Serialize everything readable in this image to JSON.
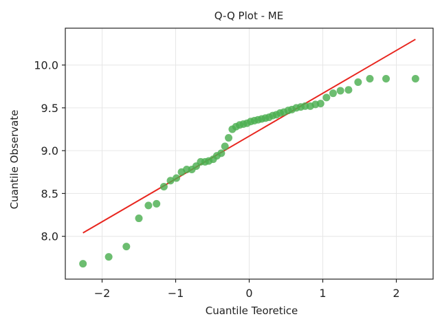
{
  "chart_data": {
    "type": "scatter",
    "title": "Q-Q Plot - ME",
    "xlabel": "Cuantile Teoretice",
    "ylabel": "Cuantile Observate",
    "xlim": [
      -2.5,
      2.5
    ],
    "ylim": [
      7.5,
      10.43
    ],
    "grid": true,
    "xticks": [
      -2,
      -1,
      0,
      1,
      2
    ],
    "xtick_labels": [
      "−2",
      "−1",
      "0",
      "1",
      "2"
    ],
    "yticks": [
      8.0,
      8.5,
      9.0,
      9.5,
      10.0
    ],
    "ytick_labels": [
      "8.0",
      "8.5",
      "9.0",
      "9.5",
      "10.0"
    ],
    "colors": {
      "points": "#4caf50",
      "line": "#e8261f"
    },
    "series": [
      {
        "kind": "points",
        "x": [
          -2.26,
          -1.91,
          -1.67,
          -1.5,
          -1.37,
          -1.26,
          -1.16,
          -1.07,
          -0.99,
          -0.92,
          -0.85,
          -0.78,
          -0.72,
          -0.66,
          -0.6,
          -0.55,
          -0.49,
          -0.44,
          -0.38,
          -0.33,
          -0.28,
          -0.23,
          -0.18,
          -0.13,
          -0.08,
          -0.03,
          0.02,
          0.07,
          0.12,
          0.17,
          0.22,
          0.27,
          0.32,
          0.37,
          0.42,
          0.47,
          0.53,
          0.58,
          0.64,
          0.7,
          0.76,
          0.83,
          0.9,
          0.97,
          1.05,
          1.14,
          1.24,
          1.35,
          1.48,
          1.64,
          1.86,
          2.26
        ],
        "y": [
          7.68,
          7.76,
          7.88,
          8.21,
          8.36,
          8.38,
          8.58,
          8.65,
          8.68,
          8.75,
          8.78,
          8.78,
          8.82,
          8.87,
          8.87,
          8.88,
          8.9,
          8.94,
          8.97,
          9.05,
          9.15,
          9.25,
          9.28,
          9.3,
          9.31,
          9.32,
          9.34,
          9.35,
          9.36,
          9.37,
          9.38,
          9.39,
          9.41,
          9.42,
          9.44,
          9.45,
          9.47,
          9.48,
          9.5,
          9.51,
          9.52,
          9.52,
          9.54,
          9.55,
          9.62,
          9.67,
          9.7,
          9.71,
          9.8,
          9.84,
          9.84,
          9.84
        ]
      },
      {
        "kind": "line",
        "x": [
          -2.26,
          2.26
        ],
        "y": [
          8.04,
          10.3
        ]
      }
    ]
  }
}
